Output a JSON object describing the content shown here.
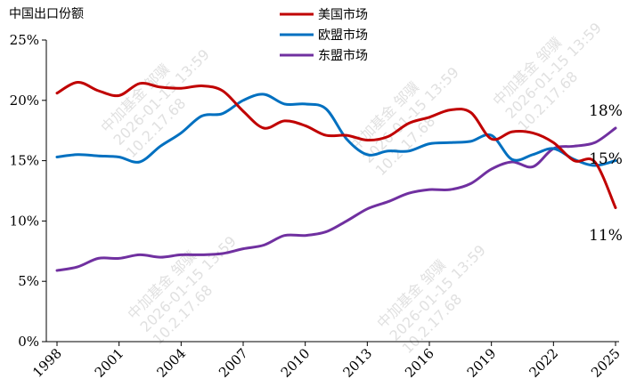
{
  "chart_data": {
    "type": "line",
    "title": "中国出口份额",
    "x": [
      1998,
      1999,
      2000,
      2001,
      2002,
      2003,
      2004,
      2005,
      2006,
      2007,
      2008,
      2009,
      2010,
      2011,
      2012,
      2013,
      2014,
      2015,
      2016,
      2017,
      2018,
      2019,
      2020,
      2021,
      2022,
      2023,
      2024,
      2025
    ],
    "x_ticks": [
      "1998",
      "2001",
      "2004",
      "2007",
      "2010",
      "2013",
      "2016",
      "2019",
      "2022",
      "2025"
    ],
    "y_ticks": [
      "0%",
      "5%",
      "10%",
      "15%",
      "20%",
      "25%"
    ],
    "ylim": [
      0,
      25
    ],
    "y_unit": "%",
    "grid": false,
    "legend_position": "top-center",
    "series": [
      {
        "name": "美国市场",
        "color": "#c00000",
        "values": [
          20.6,
          21.5,
          20.8,
          20.4,
          21.4,
          21.1,
          21.0,
          21.2,
          20.8,
          19.1,
          17.7,
          18.3,
          17.9,
          17.1,
          17.1,
          16.7,
          17.0,
          18.1,
          18.6,
          19.2,
          19.0,
          16.8,
          17.4,
          17.3,
          16.5,
          15.0,
          14.9,
          11.1
        ]
      },
      {
        "name": "欧盟市场",
        "color": "#0070c0",
        "values": [
          15.3,
          15.5,
          15.4,
          15.3,
          14.9,
          16.2,
          17.3,
          18.7,
          18.9,
          20.0,
          20.5,
          19.7,
          19.7,
          19.3,
          16.8,
          15.5,
          15.8,
          15.8,
          16.4,
          16.5,
          16.6,
          17.1,
          15.1,
          15.5,
          16.0,
          15.1,
          14.6,
          15.0
        ]
      },
      {
        "name": "东盟市场",
        "color": "#7030a0",
        "values": [
          5.9,
          6.2,
          6.9,
          6.9,
          7.2,
          7.0,
          7.2,
          7.2,
          7.3,
          7.7,
          8.0,
          8.8,
          8.8,
          9.1,
          10.0,
          11.0,
          11.6,
          12.3,
          12.6,
          12.6,
          13.1,
          14.3,
          14.9,
          14.5,
          16.0,
          16.2,
          16.5,
          17.7
        ]
      }
    ],
    "end_labels": [
      {
        "series": "东盟市场",
        "text": "18%"
      },
      {
        "series": "欧盟市场",
        "text": "15%"
      },
      {
        "series": "美国市场",
        "text": "11%"
      }
    ]
  },
  "watermark": {
    "lines": [
      "中加基金 邹骥",
      "2026-01-15 13:59",
      "10.2.17.68"
    ]
  }
}
